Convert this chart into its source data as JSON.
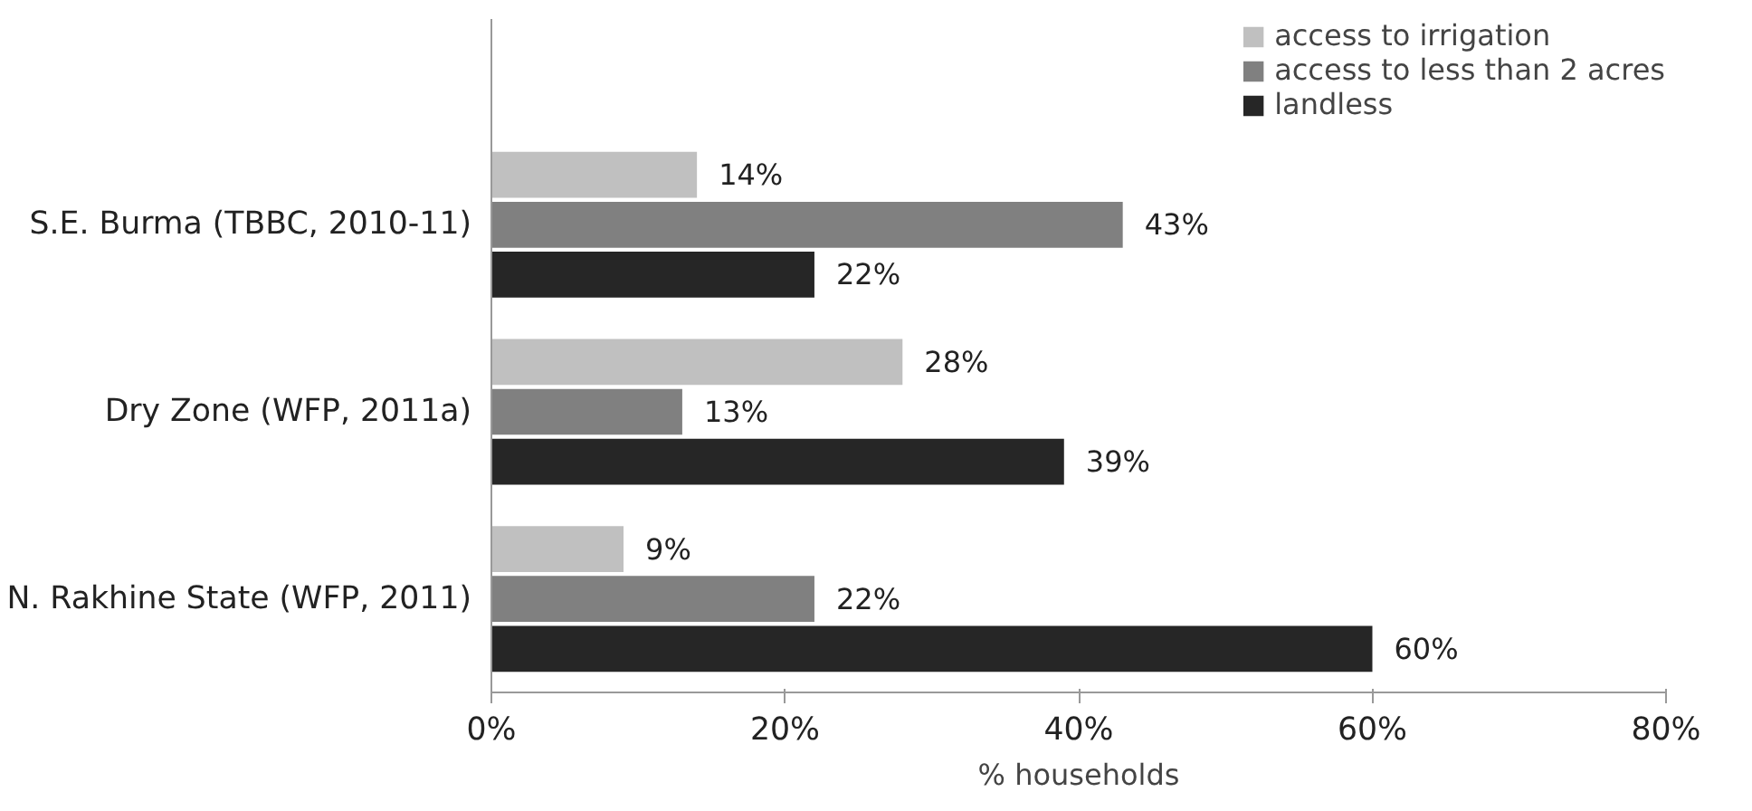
{
  "chart_data": {
    "type": "bar",
    "orientation": "horizontal",
    "xlabel": "% households",
    "categories": [
      "S.E. Burma (TBBC, 2010-11)",
      "Dry Zone (WFP, 2011a)",
      "N. Rakhine State (WFP, 2011)"
    ],
    "series": [
      {
        "name": "access to irrigation",
        "color": "#c0c0c0",
        "values": [
          14,
          28,
          9
        ],
        "value_labels": [
          "14%",
          "28%",
          "9%"
        ]
      },
      {
        "name": "access to less than 2 acres",
        "color": "#808080",
        "values": [
          43,
          13,
          22
        ],
        "value_labels": [
          "43%",
          "13%",
          "22%"
        ]
      },
      {
        "name": "landless",
        "color": "#262626",
        "values": [
          22,
          39,
          60
        ],
        "value_labels": [
          "22%",
          "39%",
          "60%"
        ]
      }
    ],
    "xlim": [
      0,
      80
    ],
    "xticks": [
      {
        "value": 0,
        "label": "0%"
      },
      {
        "value": 20,
        "label": "20%"
      },
      {
        "value": 40,
        "label": "40%"
      },
      {
        "value": 60,
        "label": "60%"
      },
      {
        "value": 80,
        "label": "80%"
      }
    ],
    "legend": "top right",
    "grid": false
  }
}
